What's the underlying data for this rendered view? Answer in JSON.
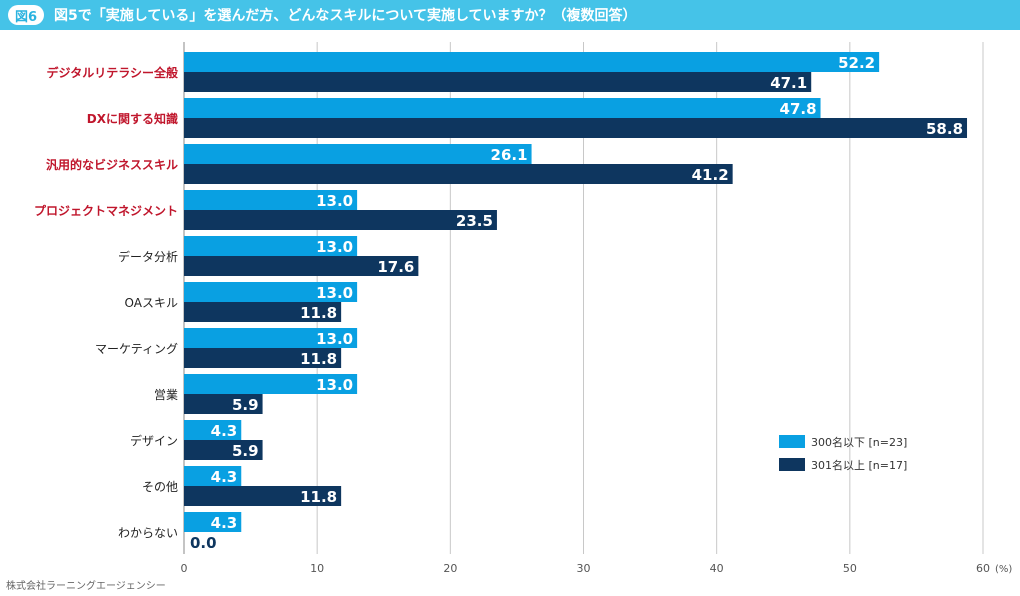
{
  "header": {
    "badge": "図6",
    "title": "図5で「実施している」を選んだ方、どんなスキルについて実施していますか？（複数回答）"
  },
  "footer": {
    "source": "株式会社ラーニングエージェンシー"
  },
  "colors": {
    "header_bg": "#45c3e8",
    "series1": "#09a0e2",
    "series2": "#0e365f",
    "highlight_label": "#c0162c",
    "label": "#222222",
    "grid": "#c8c8c8"
  },
  "chart_data": {
    "type": "bar",
    "orientation": "horizontal",
    "categories": [
      "デジタルリテラシー全般",
      "DXに関する知識",
      "汎用的なビジネススキル",
      "プロジェクトマネジメント",
      "データ分析",
      "OAスキル",
      "マーケティング",
      "営業",
      "デザイン",
      "その他",
      "わからない"
    ],
    "highlighted_categories": [
      "デジタルリテラシー全般",
      "DXに関する知識",
      "汎用的なビジネススキル",
      "プロジェクトマネジメント"
    ],
    "series": [
      {
        "name": "300名以下 [n=23]",
        "values": [
          52.2,
          47.8,
          26.1,
          13.0,
          13.0,
          13.0,
          13.0,
          13.0,
          4.3,
          4.3,
          4.3
        ]
      },
      {
        "name": "301名以上 [n=17]",
        "values": [
          47.1,
          58.8,
          41.2,
          23.5,
          17.6,
          11.8,
          11.8,
          5.9,
          5.9,
          11.8,
          0.0
        ]
      }
    ],
    "xlim": [
      0,
      60
    ],
    "xticks": [
      "0",
      "10",
      "20",
      "30",
      "40",
      "50",
      "60"
    ],
    "x_unit": "(%)",
    "grid": true,
    "legend_position": "bottom-right"
  }
}
